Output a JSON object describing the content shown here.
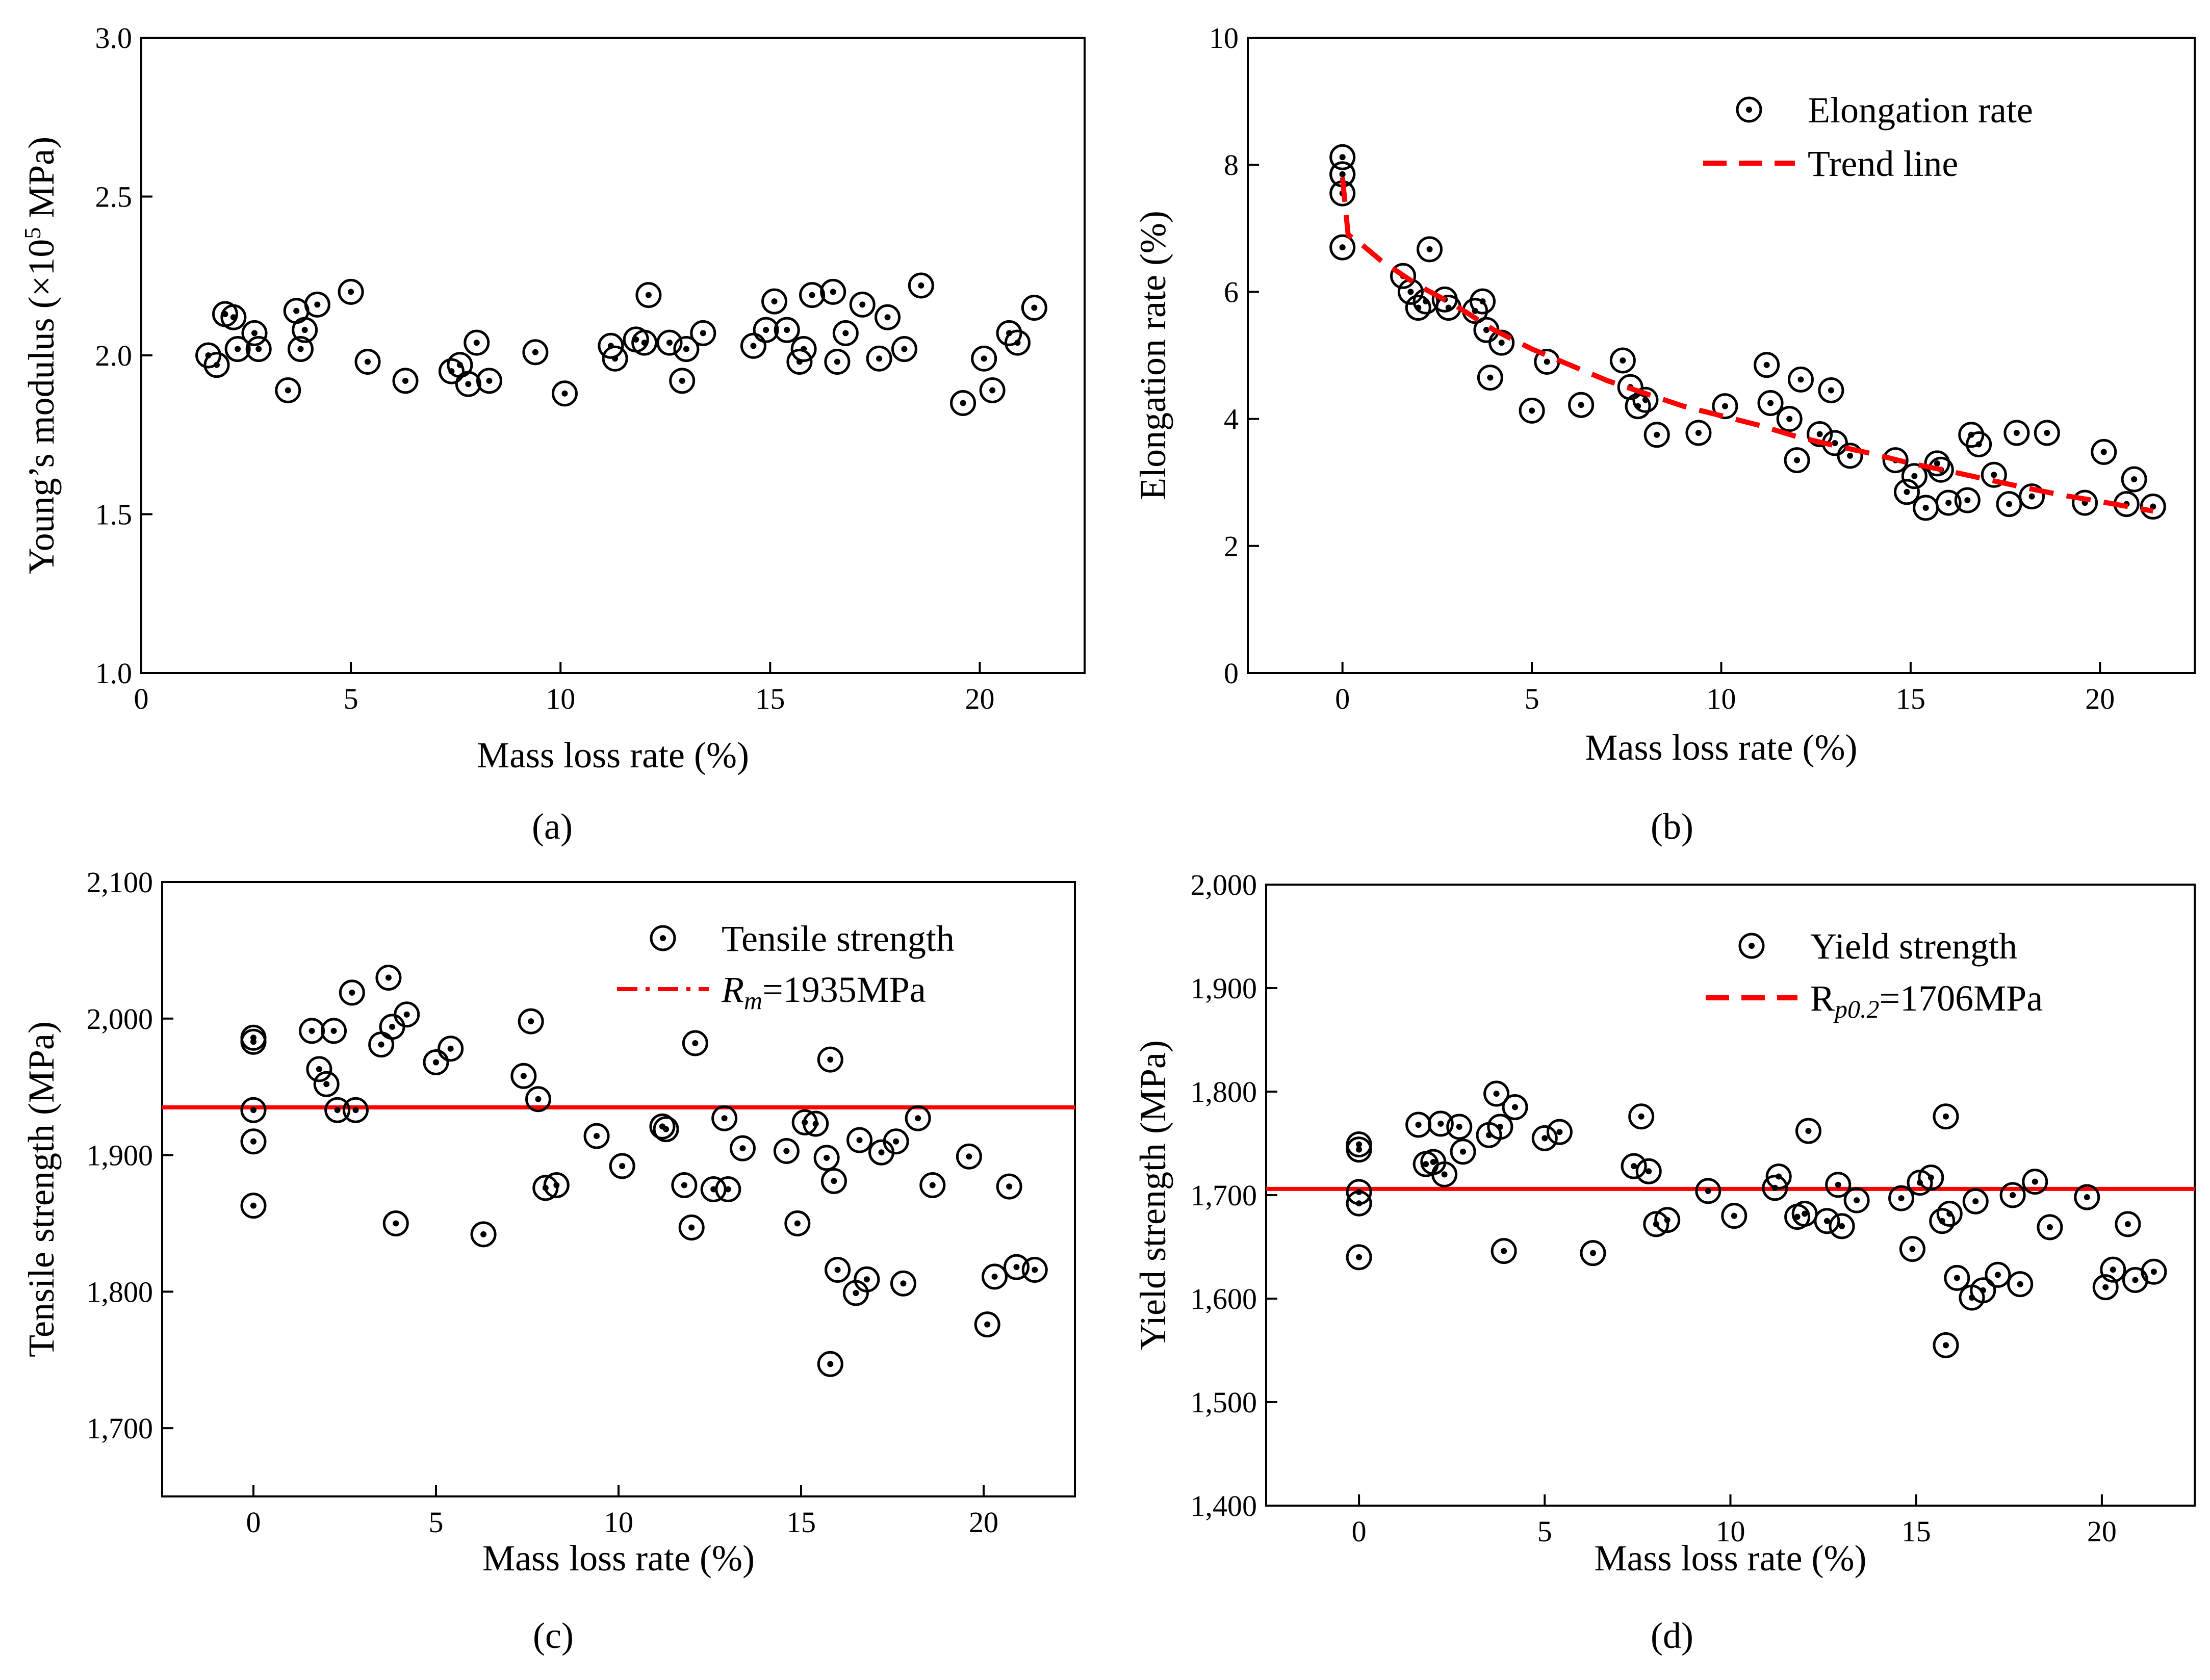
{
  "chart_data": [
    {
      "panel": "a",
      "type": "scatter",
      "tag": "(a)",
      "title": "",
      "xlabel": "Mass loss rate (%)",
      "ylabel": "Young’s modulus (×10⁵ MPa)",
      "xlim": [
        0,
        22.5
      ],
      "ylim": [
        1.0,
        3.0
      ],
      "xticks": [
        0,
        5,
        10,
        15,
        20
      ],
      "yticks": [
        1.0,
        1.5,
        2.0,
        2.5,
        3.0
      ],
      "xtick_labels": [
        "0",
        "5",
        "10",
        "15",
        "20"
      ],
      "ytick_labels": [
        "1.0",
        "1.5",
        "2.0",
        "2.5",
        "3.0"
      ],
      "legend": [],
      "series": [
        {
          "name": "Young's modulus",
          "kind": "marker",
          "x": [
            1.6,
            1.8,
            2.0,
            2.2,
            2.3,
            2.7,
            2.8,
            3.5,
            3.7,
            3.8,
            3.9,
            4.2,
            5.0,
            5.4,
            6.3,
            7.4,
            7.6,
            7.8,
            8.0,
            8.3,
            9.4,
            10.1,
            11.2,
            11.3,
            11.8,
            12.0,
            12.1,
            12.6,
            12.9,
            13.0,
            13.4,
            14.6,
            14.9,
            15.1,
            15.4,
            15.7,
            15.8,
            16.0,
            16.5,
            16.6,
            16.8,
            17.2,
            17.6,
            17.8,
            18.2,
            18.6,
            19.6,
            20.1,
            20.3,
            20.7,
            20.9,
            21.3
          ],
          "y": [
            2.0,
            1.97,
            2.13,
            2.12,
            2.02,
            2.07,
            2.02,
            1.89,
            2.14,
            2.02,
            2.08,
            2.16,
            2.2,
            1.98,
            1.92,
            1.95,
            1.97,
            1.91,
            2.04,
            1.92,
            2.01,
            1.88,
            2.03,
            1.99,
            2.05,
            2.04,
            2.19,
            2.04,
            1.92,
            2.02,
            2.07,
            2.03,
            2.08,
            2.17,
            2.08,
            1.98,
            2.02,
            2.19,
            2.2,
            1.98,
            2.07,
            2.16,
            1.99,
            2.12,
            2.02,
            2.22,
            1.85,
            1.99,
            1.89,
            2.07,
            2.04,
            2.15
          ]
        }
      ]
    },
    {
      "panel": "b",
      "type": "scatter",
      "tag": "(b)",
      "title": "",
      "xlabel": "Mass loss rate (%)",
      "ylabel": "Elongation rate (%)",
      "xlim": [
        -2.5,
        22.5
      ],
      "ylim": [
        0,
        10
      ],
      "xticks": [
        0,
        5,
        10,
        15,
        20
      ],
      "yticks": [
        0,
        2,
        4,
        6,
        8,
        10
      ],
      "xtick_labels": [
        "0",
        "5",
        "10",
        "15",
        "20"
      ],
      "ytick_labels": [
        "0",
        "2",
        "4",
        "6",
        "8",
        "10"
      ],
      "legend": [
        "Elongation rate",
        "Trend line"
      ],
      "series": [
        {
          "name": "Elongation rate",
          "kind": "marker",
          "x": [
            0,
            0,
            0,
            0,
            0,
            1.6,
            1.8,
            2.0,
            2.2,
            2.3,
            2.7,
            2.8,
            3.5,
            3.7,
            3.8,
            3.9,
            4.2,
            5.0,
            5.4,
            6.3,
            7.4,
            7.6,
            7.8,
            8.0,
            8.3,
            9.4,
            10.1,
            11.2,
            11.3,
            11.8,
            12.0,
            12.1,
            12.6,
            12.9,
            13.0,
            13.4,
            14.6,
            14.9,
            15.1,
            15.4,
            15.7,
            15.8,
            16.0,
            16.5,
            16.6,
            16.8,
            17.2,
            17.6,
            17.8,
            18.2,
            18.6,
            19.6,
            20.1,
            20.7,
            20.9,
            21.4
          ],
          "y": [
            8.12,
            7.85,
            7.55,
            7.85,
            6.7,
            6.25,
            6.0,
            5.75,
            5.85,
            6.67,
            5.88,
            5.75,
            5.7,
            5.85,
            5.4,
            4.65,
            5.2,
            4.13,
            4.9,
            4.22,
            4.92,
            4.5,
            4.2,
            4.3,
            3.75,
            3.78,
            4.2,
            4.85,
            4.25,
            4.0,
            3.35,
            4.62,
            3.76,
            4.45,
            3.62,
            3.42,
            3.35,
            2.85,
            3.1,
            2.6,
            3.3,
            3.2,
            2.68,
            2.72,
            3.75,
            3.6,
            3.12,
            2.66,
            3.78,
            2.78,
            3.78,
            2.68,
            3.48,
            2.66,
            3.05,
            2.62
          ]
        },
        {
          "name": "Trend line",
          "kind": "dashed-line",
          "x": [
            0,
            0.15,
            0.5,
            1,
            2,
            3,
            4,
            5,
            6,
            7,
            8,
            9,
            10,
            11,
            12,
            13,
            14,
            15,
            16,
            17,
            18,
            19,
            20,
            21.4
          ],
          "y": [
            7.8,
            6.9,
            6.75,
            6.5,
            6.1,
            5.78,
            5.4,
            5.1,
            4.85,
            4.6,
            4.4,
            4.2,
            4.05,
            3.9,
            3.72,
            3.58,
            3.45,
            3.3,
            3.18,
            3.05,
            2.92,
            2.8,
            2.7,
            2.55
          ]
        }
      ]
    },
    {
      "panel": "c",
      "type": "scatter",
      "tag": "(c)",
      "title": "",
      "xlabel": "Mass loss rate (%)",
      "ylabel": "Tensile strength (MPa)",
      "xlim": [
        -2.5,
        22.5
      ],
      "ylim": [
        1650,
        2100
      ],
      "xticks": [
        0,
        5,
        10,
        15,
        20
      ],
      "yticks": [
        1700,
        1800,
        1900,
        2000,
        2100
      ],
      "xtick_labels": [
        "0",
        "5",
        "10",
        "15",
        "20"
      ],
      "ytick_labels": [
        "1,700",
        "1,800",
        "1,900",
        "2,000",
        "2,100"
      ],
      "legend": [
        "Tensile strength",
        "=1935MPa"
      ],
      "legend_math": {
        "symbol": "R",
        "subscript": "m"
      },
      "reference_line": {
        "name": "Rm",
        "y": 1935
      },
      "series": [
        {
          "name": "Tensile strength",
          "kind": "marker",
          "x": [
            0,
            0,
            0,
            0,
            0,
            1.6,
            1.8,
            2.0,
            2.2,
            2.3,
            2.7,
            2.8,
            3.5,
            3.7,
            3.8,
            3.9,
            4.2,
            5.0,
            5.4,
            6.3,
            7.4,
            7.6,
            7.8,
            8.0,
            8.3,
            9.4,
            10.1,
            11.2,
            11.3,
            11.8,
            12.0,
            12.1,
            12.6,
            12.9,
            13.0,
            13.4,
            14.6,
            14.9,
            15.1,
            15.4,
            15.7,
            15.8,
            15.8,
            15.9,
            16.0,
            16.5,
            16.6,
            16.8,
            17.2,
            17.6,
            17.8,
            18.2,
            18.6,
            19.6,
            20.1,
            20.3,
            20.7,
            20.9,
            21.4
          ],
          "y": [
            1986,
            1983,
            1933,
            1910,
            1863,
            1991,
            1963,
            1952,
            1991,
            1933,
            2019,
            1933,
            1981,
            2030,
            1994,
            1850,
            2003,
            1968,
            1978,
            1842,
            1958,
            1998,
            1941,
            1876,
            1878,
            1914,
            1892,
            1921,
            1919,
            1878,
            1847,
            1982,
            1875,
            1927,
            1875,
            1905,
            1903,
            1850,
            1924,
            1923,
            1898,
            1970,
            1747,
            1881,
            1816,
            1799,
            1911,
            1809,
            1902,
            1910,
            1806,
            1927,
            1878,
            1899,
            1776,
            1811,
            1877,
            1818,
            1816
          ]
        }
      ]
    },
    {
      "panel": "d",
      "type": "scatter",
      "tag": "(d)",
      "title": "",
      "xlabel": "Mass loss rate (%)",
      "ylabel": "Yield strength (MPa)",
      "xlim": [
        -2.5,
        22.5
      ],
      "ylim": [
        1400,
        2000
      ],
      "xticks": [
        0,
        5,
        10,
        15,
        20
      ],
      "yticks": [
        1400,
        1500,
        1600,
        1700,
        1800,
        1900,
        2000
      ],
      "xtick_labels": [
        "0",
        "5",
        "10",
        "15",
        "20"
      ],
      "ytick_labels": [
        "1,400",
        "1,500",
        "1,600",
        "1,700",
        "1,800",
        "1,900",
        "2,000"
      ],
      "legend": [
        "Yield strength",
        "=1706MPa"
      ],
      "legend_math": {
        "symbol": "R",
        "subscript": "p0.2"
      },
      "reference_line": {
        "name": "Rp0.2",
        "y": 1706
      },
      "series": [
        {
          "name": "Yield strength",
          "kind": "marker",
          "x": [
            0,
            0,
            0,
            0,
            0,
            1.6,
            1.8,
            2.0,
            2.2,
            2.3,
            2.7,
            2.8,
            3.5,
            3.7,
            3.8,
            3.9,
            4.2,
            5.0,
            5.4,
            6.3,
            7.4,
            7.6,
            7.8,
            8.0,
            8.3,
            9.4,
            10.1,
            11.2,
            11.3,
            11.8,
            12.0,
            12.1,
            12.6,
            12.9,
            13.0,
            13.4,
            14.6,
            14.9,
            15.1,
            15.4,
            15.7,
            15.8,
            15.8,
            15.9,
            16.1,
            16.5,
            16.6,
            16.8,
            17.2,
            17.6,
            17.8,
            18.2,
            18.6,
            19.6,
            20.1,
            20.3,
            20.7,
            20.9,
            21.4
          ],
          "y": [
            1749,
            1744,
            1703,
            1692,
            1640,
            1768,
            1730,
            1732,
            1769,
            1720,
            1766,
            1742,
            1758,
            1798,
            1766,
            1646,
            1785,
            1755,
            1761,
            1644,
            1728,
            1776,
            1723,
            1672,
            1676,
            1704,
            1680,
            1707,
            1718,
            1679,
            1682,
            1762,
            1675,
            1710,
            1670,
            1695,
            1697,
            1648,
            1712,
            1717,
            1675,
            1776,
            1555,
            1682,
            1620,
            1601,
            1694,
            1608,
            1623,
            1700,
            1614,
            1713,
            1669,
            1698,
            1611,
            1628,
            1672,
            1618,
            1626
          ]
        }
      ]
    }
  ]
}
